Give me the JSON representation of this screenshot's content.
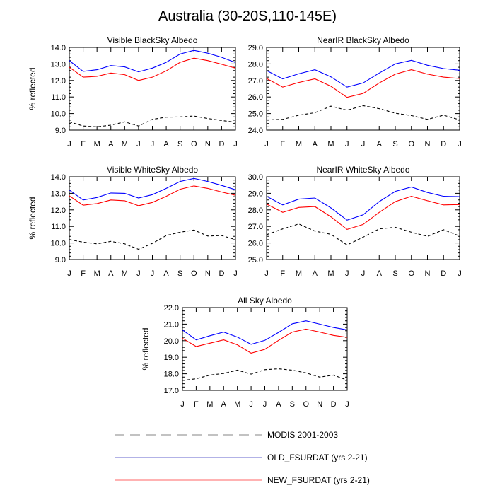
{
  "title": "Australia (30-20S,110-145E)",
  "colors": {
    "modis": "#000000",
    "old": "#0000ff",
    "new": "#ff0000",
    "legend_modis": "#9e9e9e",
    "legend_old": "#6666cc",
    "legend_new": "#ff6666"
  },
  "legend": [
    {
      "key": "modis",
      "label": "MODIS 2001-2003",
      "style": "dashed"
    },
    {
      "key": "old",
      "label": "OLD_FSURDAT (yrs 2-21)",
      "style": "solid"
    },
    {
      "key": "new",
      "label": "NEW_FSURDAT (yrs 2-21)",
      "style": "solid"
    }
  ],
  "chart_data": [
    {
      "type": "line",
      "title": "Visible BlackSky Albedo",
      "ylabel": "% reflected",
      "x": [
        "J",
        "F",
        "M",
        "A",
        "M",
        "J",
        "J",
        "A",
        "S",
        "O",
        "N",
        "D",
        "J"
      ],
      "ylim": [
        9.0,
        14.0
      ],
      "yticks": [
        "9.0",
        "10.0",
        "11.0",
        "12.0",
        "13.0",
        "14.0"
      ],
      "series": [
        {
          "name": "MODIS 2001-2003",
          "key": "modis",
          "values": [
            9.5,
            9.25,
            9.2,
            9.3,
            9.5,
            9.25,
            9.65,
            9.78,
            9.8,
            9.85,
            9.7,
            9.58,
            9.48
          ]
        },
        {
          "name": "OLD_FSURDAT (yrs 2-21)",
          "key": "old",
          "values": [
            13.2,
            12.55,
            12.65,
            12.9,
            12.82,
            12.52,
            12.75,
            13.1,
            13.6,
            13.82,
            13.65,
            13.4,
            13.08
          ]
        },
        {
          "name": "NEW_FSURDAT (yrs 2-21)",
          "key": "new",
          "values": [
            12.8,
            12.2,
            12.25,
            12.45,
            12.35,
            12.0,
            12.2,
            12.58,
            13.1,
            13.35,
            13.2,
            12.98,
            12.75
          ]
        }
      ]
    },
    {
      "type": "line",
      "title": "NearIR BlackSky Albedo",
      "ylabel": "",
      "x": [
        "J",
        "F",
        "M",
        "A",
        "M",
        "J",
        "J",
        "A",
        "S",
        "O",
        "N",
        "D",
        "J"
      ],
      "ylim": [
        24.0,
        29.0
      ],
      "yticks": [
        "24.0",
        "25.0",
        "26.0",
        "27.0",
        "28.0",
        "29.0"
      ],
      "series": [
        {
          "name": "MODIS 2001-2003",
          "key": "modis",
          "values": [
            24.62,
            24.65,
            24.9,
            25.05,
            25.45,
            25.2,
            25.48,
            25.3,
            25.02,
            24.88,
            24.65,
            24.9,
            24.62
          ]
        },
        {
          "name": "OLD_FSURDAT (yrs 2-21)",
          "key": "old",
          "values": [
            27.6,
            27.1,
            27.4,
            27.65,
            27.22,
            26.6,
            26.85,
            27.45,
            28.0,
            28.22,
            27.92,
            27.72,
            27.62
          ]
        },
        {
          "name": "NEW_FSURDAT (yrs 2-21)",
          "key": "new",
          "values": [
            27.12,
            26.6,
            26.88,
            27.1,
            26.65,
            25.98,
            26.22,
            26.85,
            27.38,
            27.65,
            27.38,
            27.2,
            27.12
          ]
        }
      ]
    },
    {
      "type": "line",
      "title": "Visible WhiteSky Albedo",
      "ylabel": "% reflected",
      "x": [
        "J",
        "F",
        "M",
        "A",
        "M",
        "J",
        "J",
        "A",
        "S",
        "O",
        "N",
        "D",
        "J"
      ],
      "ylim": [
        9.0,
        14.0
      ],
      "yticks": [
        "9.0",
        "10.0",
        "11.0",
        "12.0",
        "13.0",
        "14.0"
      ],
      "series": [
        {
          "name": "MODIS 2001-2003",
          "key": "modis",
          "values": [
            10.2,
            10.05,
            9.95,
            10.1,
            9.95,
            9.62,
            9.98,
            10.45,
            10.65,
            10.78,
            10.42,
            10.45,
            10.2
          ]
        },
        {
          "name": "OLD_FSURDAT (yrs 2-21)",
          "key": "old",
          "values": [
            13.2,
            12.6,
            12.75,
            13.02,
            13.0,
            12.72,
            12.92,
            13.3,
            13.72,
            13.9,
            13.72,
            13.48,
            13.22
          ]
        },
        {
          "name": "NEW_FSURDAT (yrs 2-21)",
          "key": "new",
          "values": [
            12.85,
            12.28,
            12.38,
            12.6,
            12.55,
            12.25,
            12.45,
            12.82,
            13.25,
            13.45,
            13.3,
            13.08,
            12.88
          ]
        }
      ]
    },
    {
      "type": "line",
      "title": "NearIR WhiteSky Albedo",
      "ylabel": "",
      "x": [
        "J",
        "F",
        "M",
        "A",
        "M",
        "J",
        "J",
        "A",
        "S",
        "O",
        "N",
        "D",
        "J"
      ],
      "ylim": [
        25.0,
        30.0
      ],
      "yticks": [
        "25.0",
        "26.0",
        "27.0",
        "28.0",
        "29.0",
        "30.0"
      ],
      "series": [
        {
          "name": "MODIS 2001-2003",
          "key": "modis",
          "values": [
            26.5,
            26.85,
            27.15,
            26.72,
            26.52,
            25.88,
            26.35,
            26.85,
            26.95,
            26.65,
            26.4,
            26.8,
            26.42
          ]
        },
        {
          "name": "OLD_FSURDAT (yrs 2-21)",
          "key": "old",
          "values": [
            28.82,
            28.3,
            28.65,
            28.72,
            28.12,
            27.38,
            27.7,
            28.5,
            29.12,
            29.38,
            29.05,
            28.82,
            28.8
          ]
        },
        {
          "name": "NEW_FSURDAT (yrs 2-21)",
          "key": "new",
          "values": [
            28.35,
            27.85,
            28.15,
            28.2,
            27.58,
            26.82,
            27.12,
            27.85,
            28.5,
            28.82,
            28.55,
            28.3,
            28.32
          ]
        }
      ]
    },
    {
      "type": "line",
      "title": "All Sky Albedo",
      "ylabel": "% reflected",
      "x": [
        "J",
        "F",
        "M",
        "A",
        "M",
        "J",
        "J",
        "A",
        "S",
        "O",
        "N",
        "D",
        "J"
      ],
      "ylim": [
        17.0,
        22.0
      ],
      "yticks": [
        "17.0",
        "18.0",
        "19.0",
        "20.0",
        "21.0",
        "22.0"
      ],
      "series": [
        {
          "name": "MODIS 2001-2003",
          "key": "modis",
          "values": [
            17.6,
            17.7,
            17.92,
            18.02,
            18.22,
            17.98,
            18.25,
            18.3,
            18.22,
            18.05,
            17.8,
            17.92,
            17.62
          ]
        },
        {
          "name": "OLD_FSURDAT (yrs 2-21)",
          "key": "old",
          "values": [
            20.65,
            20.05,
            20.3,
            20.52,
            20.22,
            19.78,
            20.02,
            20.5,
            21.02,
            21.2,
            21.0,
            20.8,
            20.65
          ]
        },
        {
          "name": "NEW_FSURDAT (yrs 2-21)",
          "key": "new",
          "values": [
            20.15,
            19.65,
            19.85,
            20.05,
            19.75,
            19.25,
            19.48,
            20.02,
            20.52,
            20.7,
            20.52,
            20.32,
            20.2
          ]
        }
      ]
    }
  ]
}
